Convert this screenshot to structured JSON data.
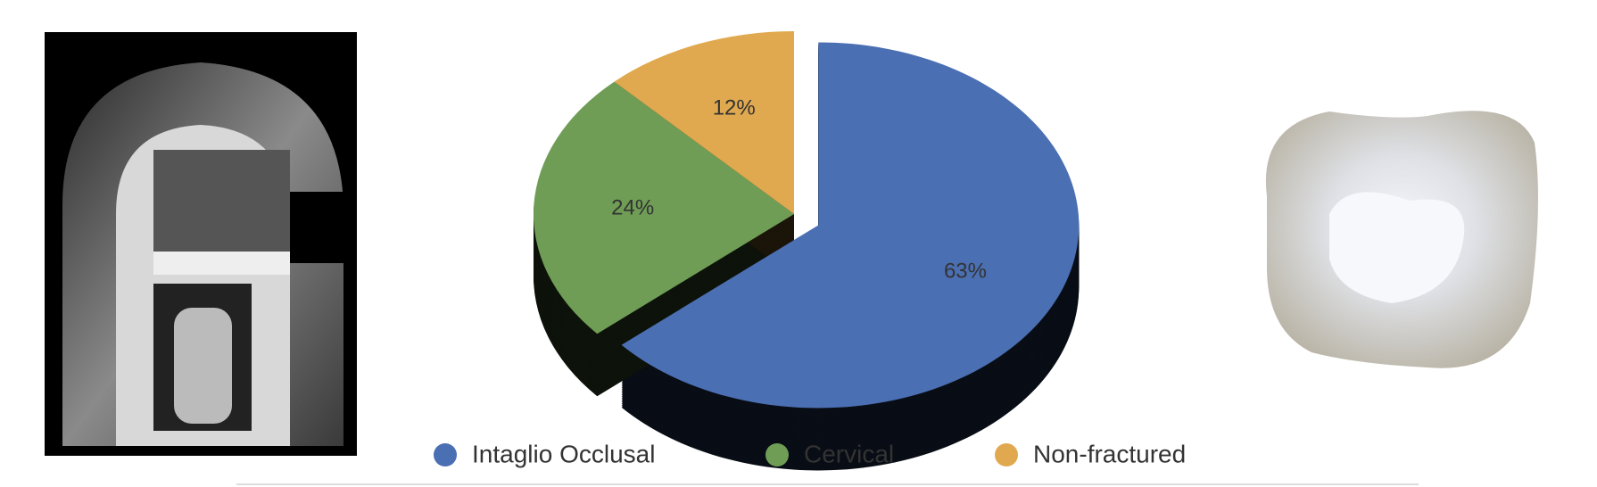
{
  "chart_data": {
    "type": "pie",
    "categories": [
      "Intaglio Occlusal",
      "Cervical",
      "Non-fractured"
    ],
    "values": [
      63,
      24,
      12
    ],
    "value_labels": [
      "63%",
      "24%",
      "12%"
    ],
    "colors": [
      "#4b6fb3",
      "#6f9d56",
      "#e0a94f"
    ],
    "legend": "bottom"
  }
}
